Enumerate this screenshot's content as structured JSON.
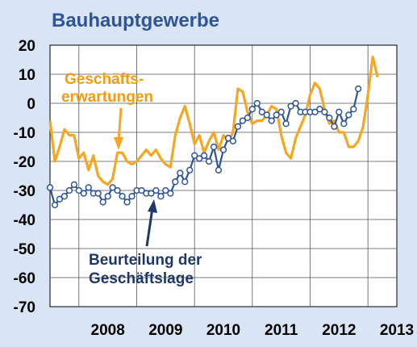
{
  "chart_data": {
    "type": "line",
    "title": "Bauhauptgewerbe",
    "xlabel": "",
    "ylabel": "",
    "ylim": [
      -70,
      20
    ],
    "yticks": [
      "20",
      "10",
      "0",
      "-10",
      "-20",
      "-30",
      "-40",
      "-50",
      "-60",
      "-70"
    ],
    "xticks": [
      "2008",
      "2009",
      "2010",
      "2011",
      "2012",
      "2013"
    ],
    "x_start": "2007-07",
    "x_end": "2013-07",
    "grid": true,
    "colors": {
      "erwartungen": "#f5a623",
      "lage": "#2f5597",
      "lage_marker_fill": "#ffffff"
    },
    "annotations": {
      "erwartungen": [
        "Geschäfts-",
        "erwartungen"
      ],
      "lage": [
        "Beurteilung der",
        "Geschäftslage"
      ]
    },
    "series": [
      {
        "name": "Geschäftserwartungen",
        "key": "erwartungen",
        "markers": false,
        "values": [
          -6,
          -20,
          -15,
          -9,
          -11,
          -11,
          -19,
          -17,
          -23,
          -18,
          -25,
          -27,
          -28,
          -26,
          -17,
          -17,
          -20,
          -21,
          -20,
          -18,
          -16,
          -18,
          -16,
          -19,
          -21,
          -22,
          -11,
          -5,
          -1,
          -7,
          -14,
          -11,
          -17,
          -13,
          -10,
          -16,
          -11,
          -13,
          -10,
          5,
          4,
          -3,
          -7,
          -6,
          -6,
          -4,
          -1,
          -2,
          -11,
          -17,
          -19,
          -12,
          -8,
          -4,
          3,
          7,
          5,
          -2,
          -7,
          -6,
          -10,
          -10,
          -15,
          -15,
          -13,
          -8,
          3,
          16,
          9
        ]
      },
      {
        "name": "Beurteilung der Geschäftslage",
        "key": "lage",
        "markers": true,
        "values": [
          -29,
          -35,
          -33,
          -32,
          -30,
          -28,
          -30,
          -31,
          -29,
          -31,
          -31,
          -34,
          -32,
          -29,
          -30,
          -32,
          -34,
          -32,
          -30,
          -30,
          -31,
          -31,
          -30,
          -32,
          -30,
          -31,
          -27,
          -24,
          -27,
          -23,
          -18,
          -19,
          -18,
          -20,
          -15,
          -23,
          -16,
          -12,
          -13,
          -8,
          -6,
          -5,
          -2,
          0,
          -3,
          -4,
          -6,
          -4,
          -3,
          -7,
          -1,
          0,
          -3,
          -3,
          -3,
          -3,
          -2,
          -3,
          -5,
          -8,
          -3,
          -7,
          -4,
          -2,
          5
        ]
      }
    ]
  }
}
